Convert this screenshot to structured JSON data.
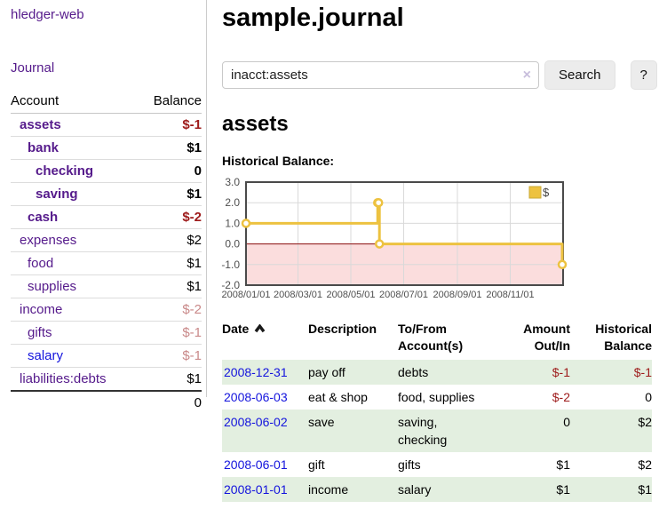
{
  "colors": {
    "link_purple": "#551a8b",
    "link_blue": "#1414dd",
    "negative": "#9d1a1a",
    "negative_faded": "#c98989",
    "row_stripe_green": "#e3efe0",
    "chart_line_gold": "#edc240",
    "chart_negative_fill": "#fbdddd",
    "chart_zero_line": "#8f1010",
    "button_bg": "#ececec"
  },
  "sidebar": {
    "app_title": "hledger-web",
    "journal_link": "Journal",
    "accounts": {
      "headers": {
        "account": "Account",
        "balance": "Balance"
      },
      "rows": [
        {
          "account": "assets",
          "balance": "$-1",
          "indent": 1,
          "bold": true,
          "account_color": "purple",
          "balance_color": "negative"
        },
        {
          "account": "bank",
          "balance": "$1",
          "indent": 2,
          "bold": true,
          "account_color": "purple",
          "balance_color": "normal"
        },
        {
          "account": "checking",
          "balance": "0",
          "indent": 3,
          "bold": true,
          "account_color": "purple",
          "balance_color": "normal"
        },
        {
          "account": "saving",
          "balance": "$1",
          "indent": 3,
          "bold": true,
          "account_color": "purple",
          "balance_color": "normal"
        },
        {
          "account": "cash",
          "balance": "$-2",
          "indent": 2,
          "bold": true,
          "account_color": "purple",
          "balance_color": "negative"
        },
        {
          "account": "expenses",
          "balance": "$2",
          "indent": 1,
          "bold": false,
          "account_color": "purple",
          "balance_color": "normal"
        },
        {
          "account": "food",
          "balance": "$1",
          "indent": 2,
          "bold": false,
          "account_color": "purple",
          "balance_color": "normal"
        },
        {
          "account": "supplies",
          "balance": "$1",
          "indent": 2,
          "bold": false,
          "account_color": "purple",
          "balance_color": "normal"
        },
        {
          "account": "income",
          "balance": "$-2",
          "indent": 1,
          "bold": false,
          "account_color": "purple",
          "balance_color": "negative_faded"
        },
        {
          "account": "gifts",
          "balance": "$-1",
          "indent": 2,
          "bold": false,
          "account_color": "purple",
          "balance_color": "negative_faded"
        },
        {
          "account": "salary",
          "balance": "$-1",
          "indent": 2,
          "bold": false,
          "account_color": "blue",
          "balance_color": "negative_faded"
        },
        {
          "account": "liabilities:debts",
          "balance": "$1",
          "indent": 1,
          "bold": false,
          "account_color": "purple",
          "balance_color": "normal"
        }
      ],
      "total": "0"
    }
  },
  "main": {
    "title": "sample.journal",
    "search": {
      "value": "inacct:assets",
      "clear_icon": "×",
      "search_button": "Search",
      "help_button": "?"
    },
    "account_heading": "assets",
    "chart_label": "Historical Balance:"
  },
  "chart_data": {
    "type": "line",
    "title": "Historical Balance:",
    "step": true,
    "series": [
      {
        "name": "$",
        "color": "#edc240",
        "points": [
          {
            "date": "2008-01-01",
            "value": 1
          },
          {
            "date": "2008-06-01",
            "value": 2
          },
          {
            "date": "2008-06-02",
            "value": 2
          },
          {
            "date": "2008-06-03",
            "value": 0
          },
          {
            "date": "2008-12-31",
            "value": -1
          }
        ]
      }
    ],
    "x_range": [
      "2008-01-01",
      "2009-01-01"
    ],
    "ylim": [
      -2,
      3
    ],
    "y_ticks": [
      {
        "label": "3.0",
        "value": 3
      },
      {
        "label": "2.0",
        "value": 2
      },
      {
        "label": "1.0",
        "value": 1
      },
      {
        "label": "0.0",
        "value": 0
      },
      {
        "label": "-1.0",
        "value": -1
      },
      {
        "label": "-2.0",
        "value": -2
      }
    ],
    "x_ticks": [
      {
        "label": "2008/01/01",
        "date": "2008-01-01"
      },
      {
        "label": "2008/03/01",
        "date": "2008-03-01"
      },
      {
        "label": "2008/05/01",
        "date": "2008-05-01"
      },
      {
        "label": "2008/07/01",
        "date": "2008-07-01"
      },
      {
        "label": "2008/09/01",
        "date": "2008-09-01"
      },
      {
        "label": "2008/11/01",
        "date": "2008-11-01"
      }
    ],
    "legend": {
      "label": "$",
      "position": "top-right"
    },
    "grid": true,
    "negative_region": true
  },
  "register": {
    "headers": {
      "date": "Date",
      "description": "Description",
      "tofrom": "To/From Account(s)",
      "amount": "Amount Out/In",
      "balance": "Historical Balance"
    },
    "sort": {
      "column": "date",
      "direction": "ascending"
    },
    "rows": [
      {
        "date": "2008-12-31",
        "description": "pay off",
        "accounts": "debts",
        "amount": "$-1",
        "balance": "$-1",
        "amount_negative": true,
        "balance_negative": true
      },
      {
        "date": "2008-06-03",
        "description": "eat & shop",
        "accounts": "food, supplies",
        "amount": "$-2",
        "balance": "0",
        "amount_negative": true,
        "balance_negative": false
      },
      {
        "date": "2008-06-02",
        "description": "save",
        "accounts": "saving, checking",
        "amount": "0",
        "balance": "$2",
        "amount_negative": false,
        "balance_negative": false
      },
      {
        "date": "2008-06-01",
        "description": "gift",
        "accounts": "gifts",
        "amount": "$1",
        "balance": "$2",
        "amount_negative": false,
        "balance_negative": false
      },
      {
        "date": "2008-01-01",
        "description": "income",
        "accounts": "salary",
        "amount": "$1",
        "balance": "$1",
        "amount_negative": false,
        "balance_negative": false
      }
    ]
  }
}
